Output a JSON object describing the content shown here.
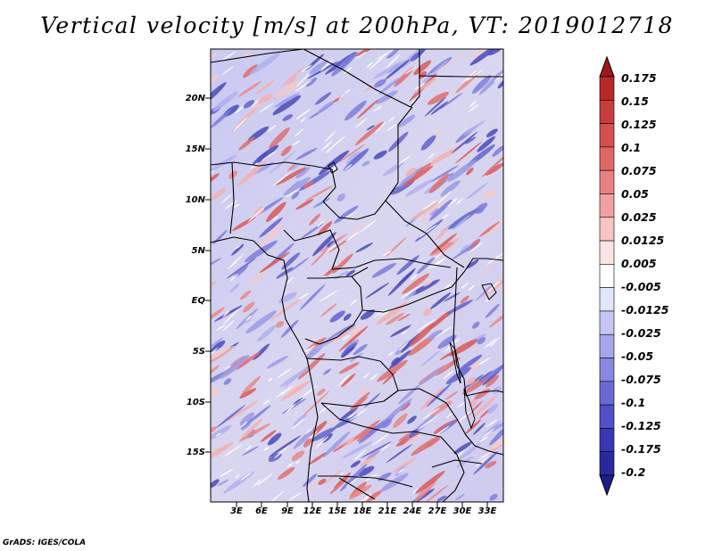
{
  "title": "Vertical velocity [m/s] at 200hPa, VT: 2019012718",
  "credit": "GrADS: IGES/COLA",
  "map": {
    "variable": "Vertical velocity",
    "units": "m/s",
    "level": "200hPa",
    "valid_time": "2019012718",
    "lat_ticks": [
      "20N",
      "15N",
      "10N",
      "5N",
      "EQ",
      "5S",
      "10S",
      "15S"
    ],
    "lon_ticks": [
      "3E",
      "6E",
      "9E",
      "12E",
      "15E",
      "18E",
      "21E",
      "24E",
      "27E",
      "30E",
      "33E"
    ]
  },
  "colorbar": {
    "levels": [
      "0.175",
      "0.15",
      "0.125",
      "0.1",
      "0.075",
      "0.05",
      "0.025",
      "0.0125",
      "0.005",
      "-0.005",
      "-0.0125",
      "-0.025",
      "-0.05",
      "-0.075",
      "-0.1",
      "-0.125",
      "-0.175",
      "-0.2"
    ],
    "colors": [
      "#a01818",
      "#b82828",
      "#c83c3c",
      "#d45050",
      "#e06666",
      "#e88282",
      "#f0a0a0",
      "#f8c4c4",
      "#fde4e4",
      "#ffffff",
      "#e4e4fd",
      "#c6c6f4",
      "#a6a6ec",
      "#8888e0",
      "#6a6ad4",
      "#5050c8",
      "#3838b4",
      "#2a2aa0",
      "#1e1e8a"
    ]
  }
}
